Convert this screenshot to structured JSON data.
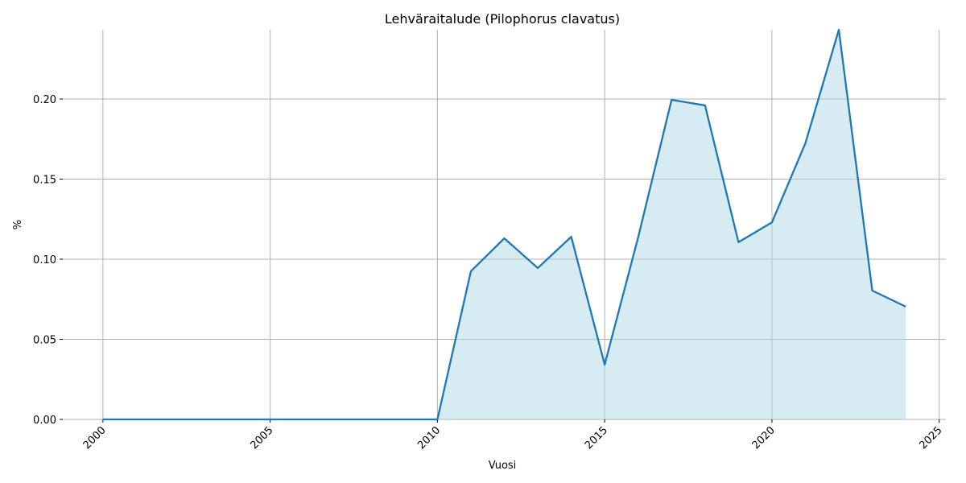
{
  "chart_data": {
    "type": "area",
    "title": "Lehväraitalude (Pilophorus clavatus)",
    "x_label": "Vuosi",
    "y_label": "%",
    "x": [
      2000,
      2001,
      2002,
      2003,
      2004,
      2005,
      2006,
      2007,
      2008,
      2009,
      2010,
      2011,
      2012,
      2013,
      2014,
      2015,
      2016,
      2017,
      2018,
      2019,
      2020,
      2021,
      2022,
      2023,
      2024
    ],
    "values": [
      0,
      0,
      0,
      0,
      0,
      0,
      0,
      0,
      0,
      0,
      0,
      0.0925,
      0.113,
      0.0945,
      0.114,
      0.0342,
      0.1136,
      0.1995,
      0.196,
      0.1106,
      0.123,
      0.1724,
      0.2432,
      0.0804,
      0.0704
    ],
    "line_color": "#1f77b4",
    "fill_color": "#add8e6",
    "xlim": [
      1998.8,
      2025.2
    ],
    "xticks": [
      2000,
      2005,
      2010,
      2015,
      2020,
      2025
    ],
    "ylim": [
      0,
      0.2432
    ],
    "yticks": [
      {
        "value": 0,
        "label": "0.00"
      },
      {
        "value": 0.05,
        "label": "0.05"
      },
      {
        "value": 0.1,
        "label": "0.10"
      },
      {
        "value": 0.15,
        "label": "0.15"
      },
      {
        "value": 0.2,
        "label": "0.20"
      }
    ],
    "grid": true
  }
}
